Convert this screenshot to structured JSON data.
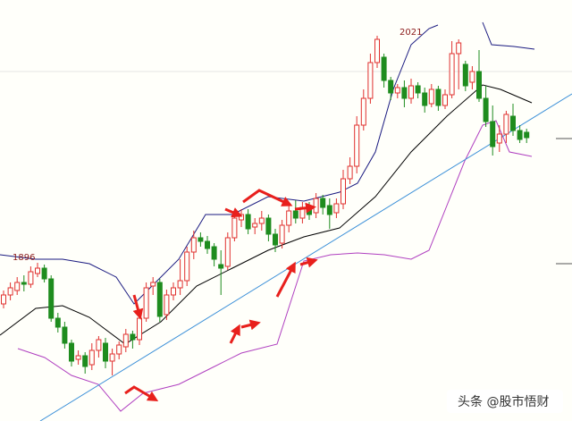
{
  "chart_data": {
    "type": "candlestick",
    "annotations": [
      "1896",
      "2021"
    ],
    "open": [
      1871,
      1876,
      1878.5,
      1883,
      1882,
      1888,
      1891,
      1885,
      1863,
      1858,
      1849,
      1840,
      1842,
      1837,
      1845,
      1849,
      1839,
      1843,
      1847,
      1854,
      1851,
      1863,
      1881,
      1883,
      1865,
      1876,
      1880,
      1884,
      1900,
      1908,
      1906,
      1903,
      1893,
      1892,
      1908,
      1918,
      1921,
      1914,
      1916,
      1919,
      1910,
      1905,
      1915,
      1923,
      1919,
      1925,
      1922,
      1930,
      1926,
      1922,
      1927,
      1941,
      1948,
      1971,
      1986,
      2006,
      2009,
      1996,
      1989,
      1992,
      1986,
      1993,
      1989,
      1983,
      1991,
      1982,
      1988,
      2011,
      2005,
      1995,
      2001,
      1986,
      1973,
      1961,
      1966,
      1976,
      1968,
      1967
    ],
    "high": [
      1878.5,
      1883,
      1886,
      1887,
      1892,
      1894,
      1893,
      1887,
      1866,
      1861,
      1851,
      1845,
      1844,
      1849,
      1853,
      1852,
      1846,
      1850,
      1857,
      1856,
      1866,
      1883,
      1886,
      1885,
      1879,
      1883,
      1896,
      1903,
      1912,
      1911,
      1909,
      1905,
      1901,
      1911,
      1923,
      1924,
      1924,
      1919,
      1923,
      1921,
      1913,
      1918,
      1926,
      1929,
      1928,
      1928,
      1933,
      1932,
      1930,
      1930,
      1946,
      1953,
      1976,
      1991,
      2011,
      2021,
      2011,
      1998,
      1994,
      1996,
      1997,
      1995,
      1992,
      1994,
      1993,
      1991,
      2018,
      2019,
      2007,
      2004,
      2013,
      1993,
      1982,
      1971,
      1979,
      1983,
      1971,
      1969
    ],
    "low": [
      1868.5,
      1873,
      1876,
      1878,
      1880,
      1886,
      1883,
      1861,
      1855,
      1846,
      1836,
      1837,
      1832,
      1834,
      1841,
      1835,
      1831,
      1840,
      1844,
      1846,
      1848,
      1861,
      1876,
      1861,
      1862,
      1873,
      1876,
      1881,
      1896,
      1903,
      1899,
      1892,
      1876,
      1890,
      1906,
      1914,
      1910,
      1910,
      1912,
      1906,
      1900,
      1902,
      1911,
      1916,
      1916,
      1918,
      1919,
      1921,
      1913,
      1919,
      1924,
      1938,
      1944,
      1968,
      1983,
      2003,
      1992,
      1985,
      1986,
      1981,
      1983,
      1986,
      1978,
      1981,
      1979,
      1980,
      1986,
      1991,
      1990,
      1991,
      1984,
      1970,
      1954,
      1956,
      1961,
      1965,
      1961,
      1961
    ],
    "close": [
      1876,
      1880,
      1883,
      1882,
      1889,
      1891,
      1885,
      1863,
      1858,
      1849,
      1839,
      1842,
      1836,
      1845,
      1851,
      1839,
      1843,
      1848,
      1854,
      1851,
      1863,
      1880,
      1883,
      1864,
      1876,
      1880,
      1884,
      1900,
      1908,
      1906,
      1902,
      1896,
      1891,
      1908,
      1919,
      1921,
      1913,
      1916,
      1919,
      1910,
      1904,
      1915,
      1923,
      1919,
      1925,
      1921,
      1930,
      1925,
      1921,
      1927,
      1941,
      1948,
      1971,
      1986,
      2006,
      2019,
      1996,
      1989,
      1992,
      1986,
      1993,
      1989,
      1982,
      1991,
      1982,
      1988,
      2011,
      2017,
      1993,
      2001,
      1986,
      1973,
      1959,
      1966,
      1977,
      1968,
      1963,
      1964
    ],
    "up_color": "#e0302e",
    "down_color": "#1e8c1e",
    "ylim": [
      1805.5,
      2041
    ]
  },
  "watermark": "头条 @股市悟财"
}
